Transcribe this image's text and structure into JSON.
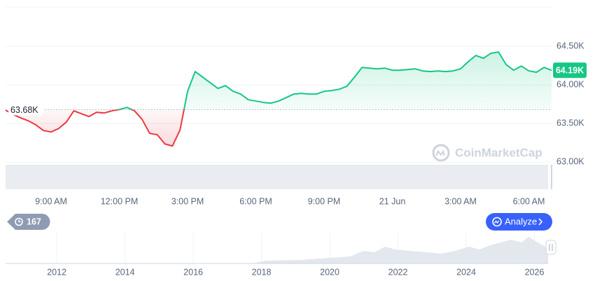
{
  "chart_data": {
    "type": "line",
    "categories": [
      null,
      null,
      null,
      null,
      null,
      null,
      "9:00 AM",
      null,
      null,
      null,
      null,
      null,
      null,
      null,
      null,
      "12:00 PM",
      null,
      null,
      null,
      null,
      null,
      null,
      null,
      null,
      "3:00 PM",
      null,
      null,
      null,
      null,
      null,
      null,
      null,
      null,
      "6:00 PM",
      null,
      null,
      null,
      null,
      null,
      null,
      null,
      null,
      "9:00 PM",
      null,
      null,
      null,
      null,
      null,
      null,
      null,
      null,
      "21 Jun",
      null,
      null,
      null,
      null,
      null,
      null,
      null,
      null,
      "3:00 AM",
      null,
      null,
      null,
      null,
      null,
      null,
      null,
      null,
      "6:00 AM",
      null,
      null,
      null
    ],
    "values": [
      63673,
      63618,
      63573,
      63536,
      63482,
      63409,
      63391,
      63436,
      63518,
      63664,
      63627,
      63591,
      63645,
      63636,
      63664,
      63682,
      63709,
      63664,
      63555,
      63373,
      63355,
      63236,
      63209,
      63418,
      63918,
      64173,
      64100,
      64027,
      63955,
      63991,
      63918,
      63882,
      63809,
      63791,
      63773,
      63764,
      63791,
      63836,
      63882,
      63891,
      63882,
      63882,
      63918,
      63927,
      63945,
      63982,
      64100,
      64227,
      64218,
      64209,
      64218,
      64191,
      64191,
      64200,
      64209,
      64182,
      64173,
      64182,
      64173,
      64182,
      64209,
      64300,
      64382,
      64345,
      64409,
      64427,
      64264,
      64191,
      64245,
      64182,
      64164,
      64227,
      64190
    ],
    "baseline": {
      "value": 63680,
      "label": "63.68K"
    },
    "last_price": {
      "value": 64190,
      "label": "64.19K"
    },
    "color_up": "#16c784",
    "color_down": "#ea3943",
    "ylim": [
      62650,
      65000
    ],
    "yticks": [
      {
        "value": 63000,
        "label": "63.00K"
      },
      {
        "value": 63500,
        "label": "63.50K"
      },
      {
        "value": 64000,
        "label": "64.00K"
      },
      {
        "value": 64500,
        "label": "64.50K"
      }
    ],
    "grid": true,
    "watermark": "CoinMarketCap",
    "navigator": {
      "xlim": [
        2010.5,
        2026.4
      ],
      "xticks": [
        2012,
        2014,
        2016,
        2018,
        2020,
        2022,
        2024,
        2026
      ]
    }
  },
  "controls": {
    "history_count": 167,
    "analyze_button": "Analyze"
  }
}
